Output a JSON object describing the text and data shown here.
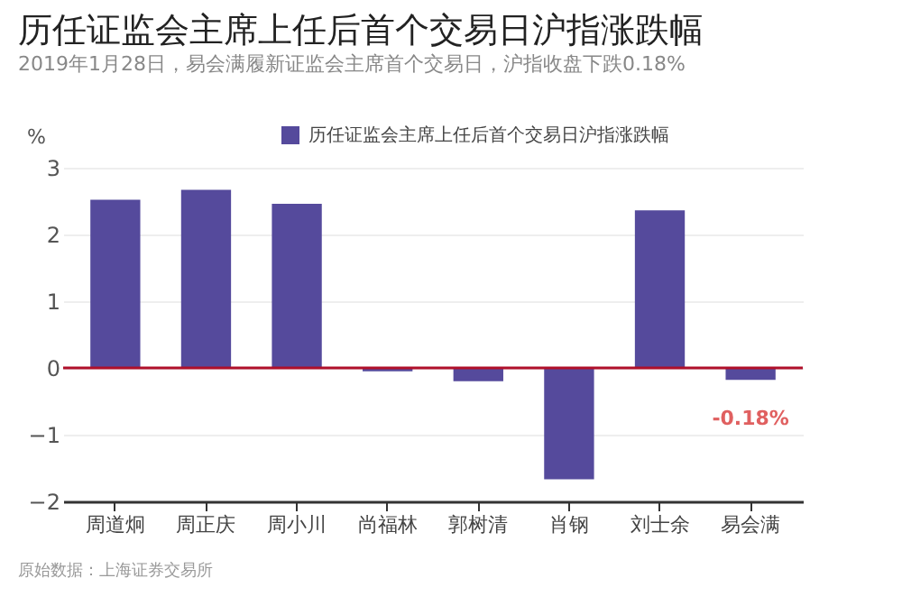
{
  "chart_data": {
    "type": "bar",
    "title": "历任证监会主席上任后首个交易日沪指涨跌幅",
    "subtitle": "2019年1月28日，易会满履新证监会主席首个交易日，沪指收盘下跌0.18%",
    "ylabel": "%",
    "categories": [
      "周道炯",
      "周正庆",
      "周小川",
      "尚福林",
      "郭树清",
      "肖钢",
      "刘士余",
      "易会满"
    ],
    "series": [
      {
        "name": "历任证监会主席上任后首个交易日沪指涨跌幅",
        "color": "#554a9c",
        "values": [
          2.52,
          2.67,
          2.46,
          -0.05,
          -0.2,
          -1.67,
          2.36,
          -0.18
        ],
        "value_labels": [
          null,
          null,
          null,
          null,
          null,
          null,
          null,
          "-0.18%"
        ]
      }
    ],
    "ylim": [
      -2,
      3
    ],
    "yticks": [
      -2,
      -1,
      0,
      1,
      2,
      3
    ],
    "grid": "y",
    "legend": "top right",
    "ref_lines": [
      {
        "axis": "y",
        "value": 0,
        "color": "#b0102a"
      }
    ],
    "annotations": [
      "原始数据：上海证券交易所"
    ]
  }
}
